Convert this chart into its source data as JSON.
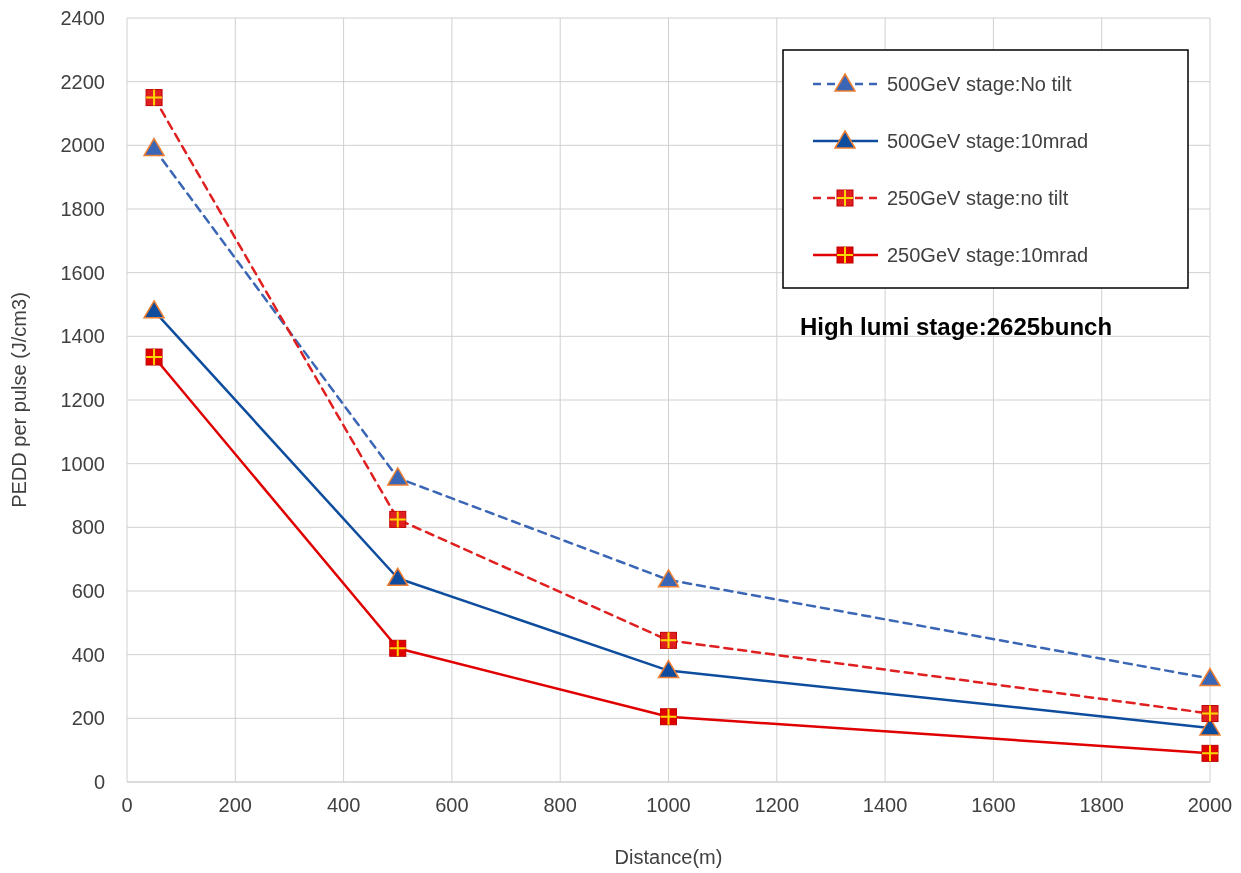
{
  "chart_data": {
    "type": "line",
    "xlabel": "Distance(m)",
    "ylabel": "PEDD per pulse (J/cm3)",
    "x": [
      50,
      500,
      1000,
      2000
    ],
    "series": [
      {
        "name": "500GeV stage:No tilt",
        "color": "#3a66b5",
        "marker": "triangle",
        "line_style": "dashed",
        "values": [
          1990,
          955,
          635,
          325
        ]
      },
      {
        "name": "500GeV stage:10mrad",
        "color": "#0e4c9e",
        "marker": "triangle",
        "line_style": "solid",
        "values": [
          1480,
          640,
          350,
          170
        ]
      },
      {
        "name": "250GeV stage:no tilt",
        "color": "#e02020",
        "marker": "square",
        "line_style": "dashed",
        "values": [
          2150,
          825,
          445,
          215
        ]
      },
      {
        "name": "250GeV stage:10mrad",
        "color": "#e00000",
        "marker": "square",
        "line_style": "solid",
        "values": [
          1335,
          420,
          205,
          90
        ]
      }
    ],
    "xlim": [
      0,
      2000
    ],
    "xticks": [
      0,
      200,
      400,
      600,
      800,
      1000,
      1200,
      1400,
      1600,
      1800,
      2000
    ],
    "ylim": [
      0,
      2400
    ],
    "yticks": [
      0,
      200,
      400,
      600,
      800,
      1000,
      1200,
      1400,
      1600,
      1800,
      2000,
      2200,
      2400
    ],
    "grid": true,
    "legend": "top right",
    "annotations": [
      "High lumi stage:2625bunch"
    ]
  }
}
